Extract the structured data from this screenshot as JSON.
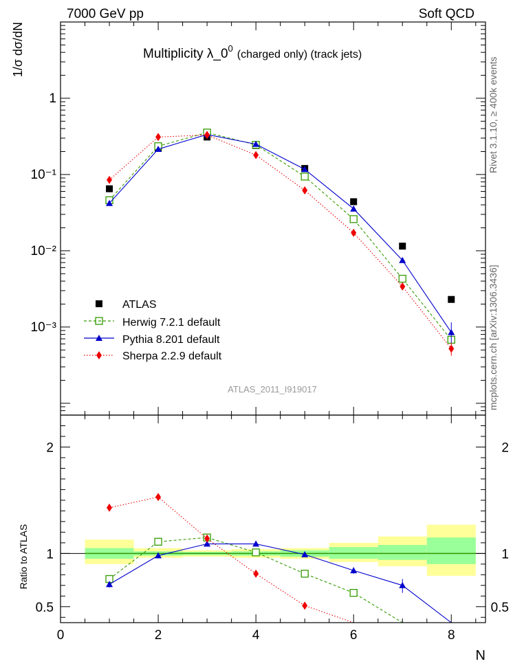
{
  "header": {
    "left": "7000 GeV pp",
    "right": "Soft QCD"
  },
  "side_labels": {
    "rivet": "Rivet 3.1.10, ≥ 400k events",
    "mcplots": "mcplots.cern.ch [arXiv:1306.3436]"
  },
  "watermark": "ATLAS_2011_I919017",
  "colors": {
    "atlas": "#000000",
    "herwig": "#339900",
    "pythia": "#0000cc",
    "sherpa": "#ee0000",
    "band_inner": "#99ff99",
    "band_outer": "#ffff99"
  },
  "chart_data": [
    {
      "type": "line",
      "title": "Multiplicity  λ_0⁰ (charged only) (track jets)",
      "title_main": "Multiplicity  λ_0",
      "title_sup": "0",
      "title_suffix": "(charged only) (track jets)",
      "ylabel": "1/σ dσ/dN",
      "yscale": "log",
      "ylim": [
        7e-05,
        10
      ],
      "xlim": [
        0,
        8.7
      ],
      "y_tick_labels": [
        "10⁻³",
        "10⁻²",
        "10⁻¹",
        "1"
      ],
      "x": [
        1,
        2,
        3,
        4,
        5,
        6,
        7,
        8
      ],
      "legend_position": "bottom-left",
      "series": [
        {
          "name": "ATLAS",
          "style": "data",
          "values": [
            0.065,
            0.22,
            0.31,
            0.24,
            0.12,
            0.044,
            0.0115,
            0.0023
          ]
        },
        {
          "name": "Herwig 7.2.1 default",
          "style": "herwig",
          "values": [
            0.046,
            0.235,
            0.355,
            0.245,
            0.094,
            0.026,
            0.0043,
            0.00068
          ]
        },
        {
          "name": "Pythia 8.201 default",
          "style": "pythia",
          "values": [
            0.042,
            0.215,
            0.335,
            0.25,
            0.117,
            0.0355,
            0.0075,
            0.00085
          ]
        },
        {
          "name": "Sherpa 2.2.9 default",
          "style": "sherpa",
          "values": [
            0.085,
            0.31,
            0.33,
            0.18,
            0.062,
            0.0172,
            0.0034,
            0.00052
          ]
        }
      ]
    },
    {
      "type": "line",
      "ylabel": "Ratio to ATLAS",
      "xlabel": "N",
      "ylim": [
        0.35,
        2.3
      ],
      "xlim": [
        0,
        8.7
      ],
      "x_tick_labels": [
        "0",
        "2",
        "4",
        "6",
        "8"
      ],
      "y_tick_labels": [
        "0.5",
        "1",
        "2"
      ],
      "bands": [
        {
          "x0": 0.5,
          "x1": 1.5,
          "inner": [
            0.95,
            1.05
          ],
          "outer": [
            0.9,
            1.13
          ]
        },
        {
          "x0": 1.5,
          "x1": 2.5,
          "inner": [
            0.98,
            1.02
          ],
          "outer": [
            0.96,
            1.05
          ]
        },
        {
          "x0": 2.5,
          "x1": 3.5,
          "inner": [
            0.985,
            1.015
          ],
          "outer": [
            0.97,
            1.03
          ]
        },
        {
          "x0": 3.5,
          "x1": 4.5,
          "inner": [
            0.98,
            1.02
          ],
          "outer": [
            0.96,
            1.04
          ]
        },
        {
          "x0": 4.5,
          "x1": 5.5,
          "inner": [
            0.97,
            1.03
          ],
          "outer": [
            0.95,
            1.05
          ]
        },
        {
          "x0": 5.5,
          "x1": 6.5,
          "inner": [
            0.95,
            1.06
          ],
          "outer": [
            0.92,
            1.1
          ]
        },
        {
          "x0": 6.5,
          "x1": 7.5,
          "inner": [
            0.94,
            1.08
          ],
          "outer": [
            0.88,
            1.16
          ]
        },
        {
          "x0": 7.5,
          "x1": 8.5,
          "inner": [
            0.9,
            1.15
          ],
          "outer": [
            0.79,
            1.27
          ]
        }
      ],
      "series": [
        {
          "name": "Herwig 7.2.1 default",
          "style": "herwig",
          "x": [
            1,
            2,
            3,
            4,
            5,
            6,
            7
          ],
          "values": [
            0.76,
            1.11,
            1.15,
            1.01,
            0.81,
            0.63,
            0.35
          ]
        },
        {
          "name": "Pythia 8.201 default",
          "style": "pythia",
          "x": [
            1,
            2,
            3,
            4,
            5,
            6,
            7,
            8
          ],
          "values": [
            0.71,
            0.98,
            1.09,
            1.09,
            0.99,
            0.84,
            0.7,
            0.35
          ]
        },
        {
          "name": "Sherpa 2.2.9 default",
          "style": "sherpa",
          "x": [
            1,
            2,
            3,
            4,
            5,
            6
          ],
          "values": [
            1.43,
            1.53,
            1.14,
            0.81,
            0.51,
            0.35
          ]
        }
      ]
    }
  ]
}
